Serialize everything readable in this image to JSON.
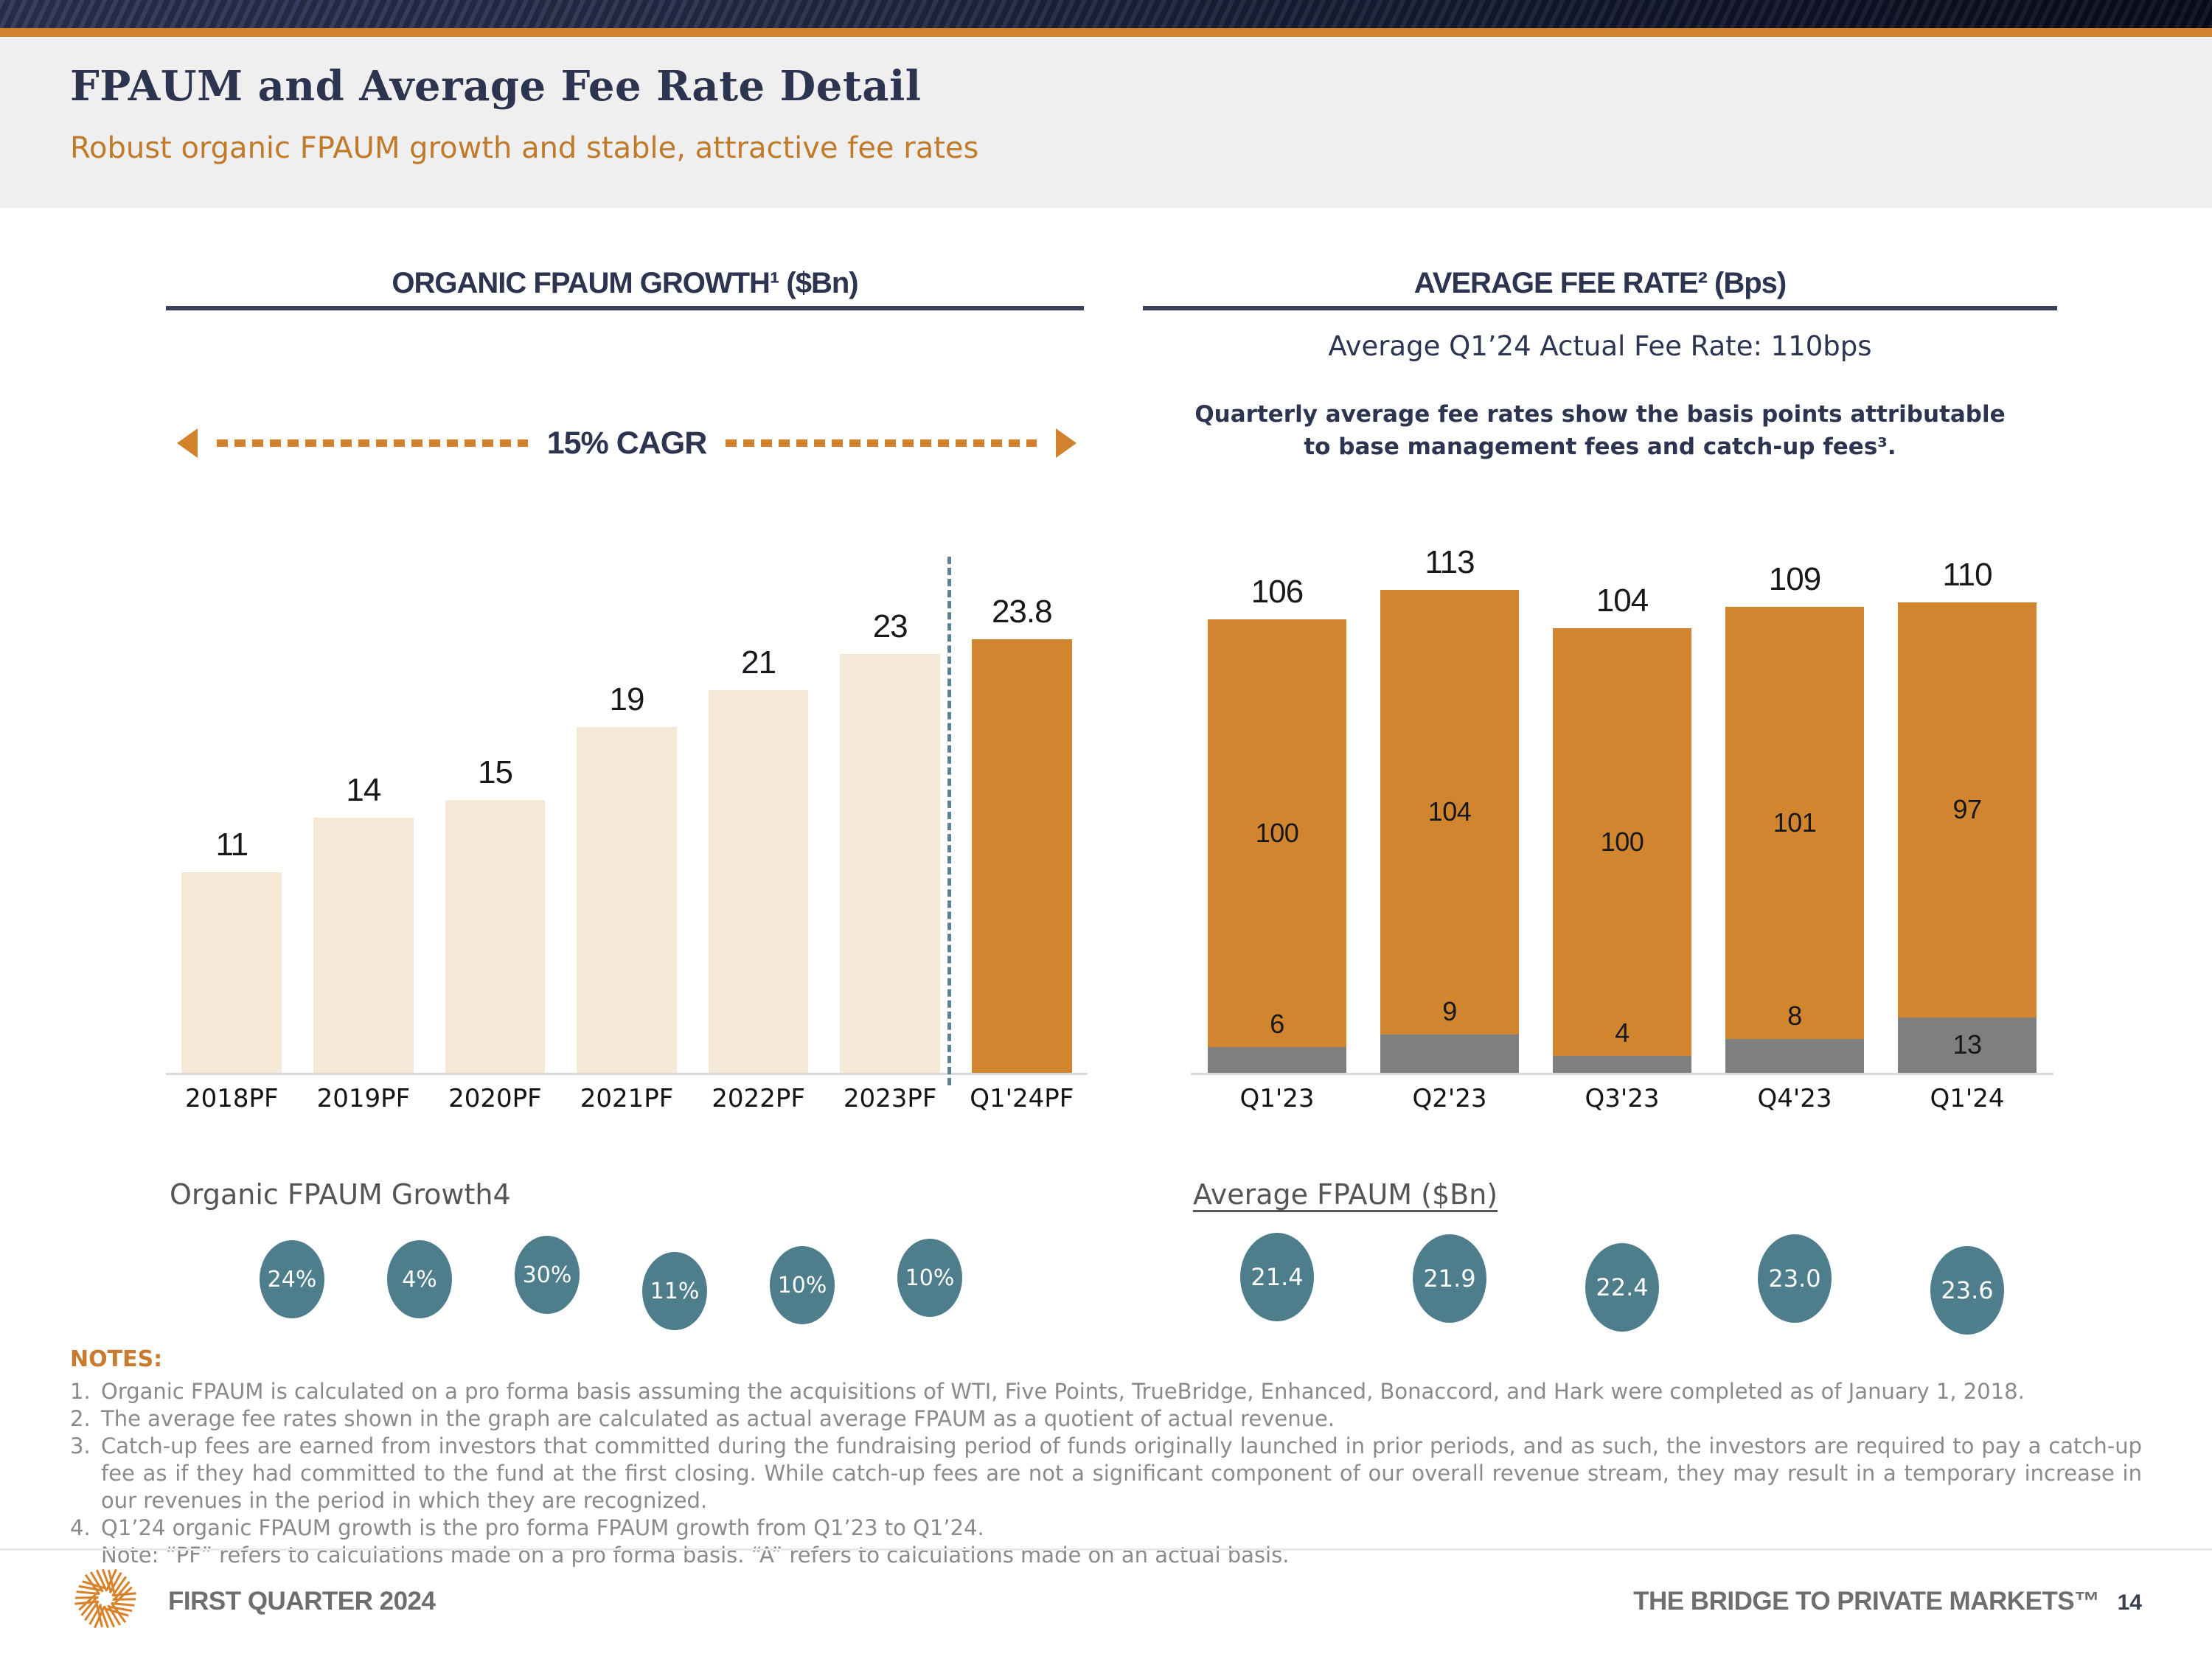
{
  "header": {
    "title": "FPAUM and Average Fee Rate Detail",
    "subtitle": "Robust organic FPAUM growth and stable, attractive fee rates"
  },
  "colors": {
    "brand_orange": "#d2822d",
    "bar_cream": "#f6e8d7",
    "bar_orange": "#d2852f",
    "bar_gray": "#7f7f7f",
    "bubble_teal": "#4e7d8b",
    "navy_text": "#2c3450"
  },
  "chart_data": [
    {
      "type": "bar",
      "title": "ORGANIC FPAUM GROWTH¹ ($Bn)",
      "annotation": "15% CAGR",
      "categories": [
        "2018PF",
        "2019PF",
        "2020PF",
        "2021PF",
        "2022PF",
        "2023PF",
        "Q1'24PF"
      ],
      "values": [
        11,
        14,
        15,
        19,
        21,
        23,
        23.8
      ],
      "labels": [
        "11",
        "14",
        "15",
        "19",
        "21",
        "23",
        "23.8"
      ],
      "bar_color": "#f6e8d7",
      "highlight_color": "#d2852f",
      "highlight_last": true,
      "ylim": [
        0,
        26
      ],
      "grid": false,
      "bubbles_label": "Organic FPAUM Growth4",
      "growth_bubbles": [
        "24%",
        "4%",
        "30%",
        "11%",
        "10%",
        "10%"
      ]
    },
    {
      "type": "stacked-bar",
      "title": "AVERAGE FEE RATE² (Bps)",
      "subtitle": "Average Q1’24 Actual Fee Rate: 110bps",
      "note": "Quarterly average fee rates show the basis points attributable to base management fees and catch-up fees³.",
      "categories": [
        "Q1'23",
        "Q2'23",
        "Q3'23",
        "Q4'23",
        "Q1'24"
      ],
      "series": [
        {
          "name": "catch-up fees",
          "color": "#7f7f7f",
          "values": [
            6,
            9,
            4,
            8,
            13
          ]
        },
        {
          "name": "base management fees",
          "color": "#d2852f",
          "values": [
            100,
            104,
            100,
            101,
            97
          ]
        }
      ],
      "totals": [
        106,
        113,
        104,
        109,
        110
      ],
      "ylim": [
        0,
        120
      ],
      "grid": false,
      "bubbles_label": "Average FPAUM ($Bn)",
      "avg_fpaum_bubbles": [
        "21.4",
        "21.9",
        "22.4",
        "23.0",
        "23.6"
      ]
    }
  ],
  "notes": {
    "heading": "NOTES:",
    "items": [
      {
        "num": "1.",
        "text": "Organic FPAUM is calculated on a pro forma basis assuming the acquisitions of WTI, Five Points, TrueBridge, Enhanced, Bonaccord, and Hark were completed as of January 1, 2018."
      },
      {
        "num": "2.",
        "text": "The average fee rates shown in the graph are calculated as actual average FPAUM as a quotient of actual revenue."
      },
      {
        "num": "3.",
        "text": "Catch-up fees are earned from investors that committed during the fundraising period of funds originally launched in prior periods, and as such, the investors are required to pay a catch-up fee as if they had committed to the fund at the first closing. While catch-up fees are not a significant component of our overall revenue stream, they may result in a temporary increase in our revenues in the period in which they are recognized."
      },
      {
        "num": "4.",
        "text": "Q1’24 organic FPAUM growth is the pro forma FPAUM growth from Q1’23 to Q1’24."
      },
      {
        "num": "",
        "text": "Note: “PF” refers to calculations made on a pro forma basis. “A” refers to calculations made on an actual basis."
      }
    ]
  },
  "footer": {
    "left": "FIRST QUARTER 2024",
    "right": "THE BRIDGE TO PRIVATE MARKETS™",
    "page": "14"
  }
}
